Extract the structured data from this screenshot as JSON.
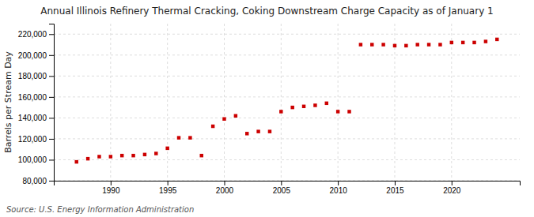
{
  "chart_data": {
    "type": "scatter",
    "title": "Annual Illinois Refinery Thermal Cracking, Coking Downstream Charge Capacity as of January 1",
    "y_label": "Barrels per Stream Day",
    "annotations": [
      "Source: U.S. Energy Information Administration"
    ],
    "x": [
      1987,
      1988,
      1989,
      1990,
      1991,
      1992,
      1993,
      1994,
      1995,
      1996,
      1997,
      1998,
      1999,
      2000,
      2001,
      2002,
      2003,
      2004,
      2005,
      2006,
      2007,
      2008,
      2009,
      2010,
      2011,
      2012,
      2013,
      2014,
      2015,
      2016,
      2017,
      2018,
      2019,
      2020,
      2021,
      2022,
      2023,
      2024
    ],
    "values": [
      98000,
      101000,
      103000,
      103000,
      104000,
      104000,
      105000,
      106000,
      111000,
      121000,
      121000,
      104000,
      132000,
      139000,
      142000,
      125000,
      127000,
      127000,
      146000,
      150000,
      151000,
      152000,
      154000,
      146000,
      146000,
      210000,
      210000,
      210000,
      209000,
      209000,
      210000,
      210000,
      210000,
      212000,
      212000,
      212000,
      213000,
      215000
    ],
    "color": "#cc0000",
    "marker": "square",
    "grid": true,
    "xlim": [
      1985,
      2026
    ],
    "xticks": [
      1990,
      1995,
      2000,
      2005,
      2010,
      2015,
      2020
    ],
    "ylim": [
      80000,
      230000
    ],
    "yticks": [
      {
        "value": 80000,
        "label": "80,000"
      },
      {
        "value": 100000,
        "label": "100,000"
      },
      {
        "value": 120000,
        "label": "120,000"
      },
      {
        "value": 140000,
        "label": "140,000"
      },
      {
        "value": 160000,
        "label": "160,000"
      },
      {
        "value": 180000,
        "label": "180,000"
      },
      {
        "value": 200000,
        "label": "200,000"
      },
      {
        "value": 220000,
        "label": "220,000"
      }
    ]
  }
}
